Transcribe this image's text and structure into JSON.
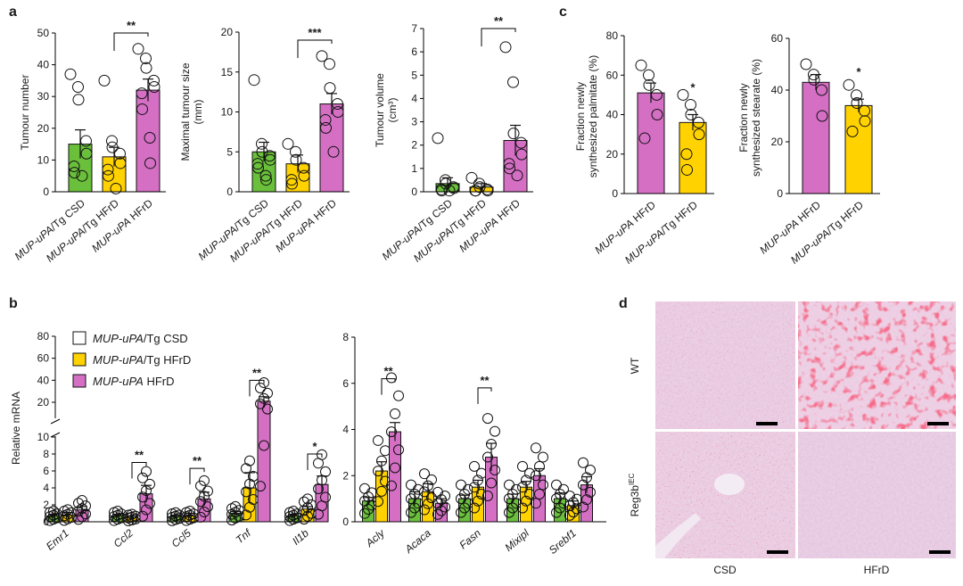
{
  "panel_labels": {
    "a": "a",
    "b": "b",
    "c": "c",
    "d": "d"
  },
  "colors": {
    "csd": "#6abf3b",
    "tg_hfrd": "#ffd200",
    "hfrd": "#d46fc4"
  },
  "chart_data": [
    {
      "type": "bar",
      "ylabel": "Tumour number",
      "ylim": [
        0,
        50
      ],
      "yticks": [
        0,
        10,
        20,
        30,
        40,
        50
      ],
      "categories": [
        {
          "italic": "MUP-uPA",
          "rest": "/Tg CSD"
        },
        {
          "italic": "MUP-uPA",
          "rest": "/Tg HFrD"
        },
        {
          "italic": "MUP-uPA",
          "rest": " HFrD"
        }
      ],
      "values": [
        15,
        11,
        32
      ],
      "errors": [
        4.5,
        3,
        3.5
      ],
      "points": [
        [
          37,
          33,
          29,
          16,
          12,
          8,
          6,
          5
        ],
        [
          35,
          16,
          14,
          12,
          9,
          7,
          5,
          1
        ],
        [
          45,
          42,
          39,
          35,
          33,
          31,
          26,
          17,
          9
        ]
      ],
      "significance": [
        {
          "from": 1,
          "to": 2,
          "label": "**",
          "y": 50
        }
      ]
    },
    {
      "type": "bar",
      "ylabel": "Maximal tumour size (mm)",
      "ylim": [
        0,
        20
      ],
      "yticks": [
        0,
        5,
        10,
        15,
        20
      ],
      "categories": [
        {
          "italic": "MUP-uPA",
          "rest": "/Tg CSD"
        },
        {
          "italic": "MUP-uPA",
          "rest": "/Tg HFrD"
        },
        {
          "italic": "MUP-uPA",
          "rest": " HFrD"
        }
      ],
      "values": [
        5,
        3.5,
        11
      ],
      "errors": [
        1.2,
        1.1,
        1.3
      ],
      "points": [
        [
          14,
          6,
          5,
          4.5,
          4,
          3.5,
          3,
          2,
          1.5
        ],
        [
          6,
          5,
          4,
          3,
          2,
          1.5,
          1
        ],
        [
          17,
          16,
          13,
          11,
          10,
          9,
          8,
          5
        ]
      ],
      "significance": [
        {
          "from": 1,
          "to": 2,
          "label": "***",
          "y": 19
        }
      ]
    },
    {
      "type": "bar",
      "ylabel": "Tumour volume (cm3)",
      "ylim": [
        0,
        7
      ],
      "yticks": [
        0,
        1,
        2,
        3,
        4,
        5,
        6,
        7
      ],
      "categories": [
        {
          "italic": "MUP-uPA",
          "rest": "/Tg CSD"
        },
        {
          "italic": "MUP-uPA",
          "rest": "/Tg HFrD"
        },
        {
          "italic": "MUP-uPA",
          "rest": " HFrD"
        }
      ],
      "values": [
        0.35,
        0.2,
        2.2
      ],
      "errors": [
        0.25,
        0.15,
        0.65
      ],
      "points": [
        [
          2.3,
          0.5,
          0.35,
          0.2,
          0.15,
          0.1,
          0.05,
          0.05
        ],
        [
          0.6,
          0.35,
          0.2,
          0.1,
          0.05,
          0.05,
          0.05
        ],
        [
          6.2,
          4.7,
          2.5,
          2.1,
          1.6,
          1.2,
          1.0,
          0.7
        ]
      ],
      "significance": [
        {
          "from": 1,
          "to": 2,
          "label": "**",
          "y": 7
        }
      ]
    },
    {
      "type": "bar",
      "ylabel": "Relative mRNA",
      "ylim": [
        0,
        80
      ],
      "yticks": [
        0,
        2,
        4,
        6,
        8,
        10,
        20,
        40,
        60,
        80
      ],
      "groups": [
        "Emr1",
        "Ccl2",
        "Ccl5",
        "Tnf",
        "Il1b"
      ],
      "series": [
        {
          "name": {
            "italic": "MUP-uPA",
            "rest": "/Tg CSD"
          },
          "values": [
            0.7,
            0.7,
            0.6,
            1.0,
            0.7
          ],
          "errors": [
            0.2,
            0.2,
            0.2,
            0.2,
            0.2
          ]
        },
        {
          "name": {
            "italic": "MUP-uPA",
            "rest": "/Tg HFrD"
          },
          "values": [
            0.8,
            0.5,
            0.7,
            4.0,
            1.5
          ],
          "errors": [
            0.3,
            0.2,
            0.3,
            1.8,
            0.3
          ]
        },
        {
          "name": {
            "italic": "MUP-uPA",
            "rest": " HFrD"
          },
          "values": [
            1.4,
            3.3,
            2.7,
            21,
            4.4
          ],
          "errors": [
            0.4,
            1.0,
            0.8,
            4.0,
            1.0
          ]
        }
      ],
      "significance": [
        {
          "group": 1,
          "label": "**",
          "y": 7.0
        },
        {
          "group": 2,
          "label": "**",
          "y": 6.3
        },
        {
          "group": 3,
          "label": "**",
          "y": 40
        },
        {
          "group": 4,
          "label": "*",
          "y": 8.0
        }
      ]
    },
    {
      "type": "bar",
      "ylim": [
        0,
        8
      ],
      "yticks": [
        0,
        2,
        4,
        6,
        8
      ],
      "groups": [
        "Acly",
        "Acaca",
        "Fasn",
        "Mixipl",
        "Srebf1"
      ],
      "series": [
        {
          "name": {
            "italic": "MUP-uPA",
            "rest": "/Tg CSD"
          },
          "values": [
            0.9,
            1.0,
            1.0,
            1.0,
            1.0
          ],
          "errors": [
            0.15,
            0.3,
            0.15,
            0.2,
            0.25
          ]
        },
        {
          "name": {
            "italic": "MUP-uPA",
            "rest": "/Tg HFrD"
          },
          "values": [
            2.2,
            1.3,
            1.5,
            1.5,
            0.7
          ],
          "errors": [
            0.4,
            0.35,
            0.3,
            0.25,
            0.2
          ]
        },
        {
          "name": {
            "italic": "MUP-uPA",
            "rest": " HFrD"
          },
          "values": [
            3.9,
            0.8,
            2.8,
            2.0,
            1.6
          ],
          "errors": [
            0.4,
            0.2,
            0.6,
            0.3,
            0.35
          ]
        }
      ],
      "significance": [
        {
          "group": 0,
          "label": "**",
          "y": 6.2
        },
        {
          "group": 2,
          "label": "**",
          "y": 5.8
        }
      ]
    },
    {
      "type": "bar",
      "ylabel": "Fraction newly synthesized palmitate (%)",
      "ylim": [
        0,
        80
      ],
      "yticks": [
        0,
        20,
        40,
        60,
        80
      ],
      "categories": [
        {
          "italic": "MUP-uPA",
          "rest": " HFrD"
        },
        {
          "italic": "MUP-uPA",
          "rest": "/Tg HFrD"
        }
      ],
      "values": [
        51,
        36
      ],
      "errors": [
        5,
        4
      ],
      "points": [
        [
          65,
          60,
          55,
          50,
          40,
          28
        ],
        [
          50,
          45,
          40,
          36,
          30,
          20,
          12
        ]
      ],
      "significance": [
        {
          "bar": 1,
          "label": "*"
        }
      ]
    },
    {
      "type": "bar",
      "ylabel": "Fraction newly synthesized stearate (%)",
      "ylim": [
        0,
        60
      ],
      "yticks": [
        0,
        20,
        40,
        60
      ],
      "categories": [
        {
          "italic": "MUP-uPA",
          "rest": " HFrD"
        },
        {
          "italic": "MUP-uPA",
          "rest": "/Tg HFrD"
        }
      ],
      "values": [
        43,
        34
      ],
      "errors": [
        3,
        2.5
      ],
      "points": [
        [
          50,
          46,
          44,
          40,
          30
        ],
        [
          42,
          38,
          35,
          32,
          28,
          24
        ]
      ],
      "significance": [
        {
          "bar": 1,
          "label": "*"
        }
      ]
    }
  ],
  "legend": [
    {
      "italic": "MUP-uPA",
      "rest": "/Tg CSD"
    },
    {
      "italic": "MUP-uPA",
      "rest": "/Tg HFrD"
    },
    {
      "italic": "MUP-uPA",
      "rest": " HFrD"
    }
  ],
  "histology": {
    "row_labels": {
      "wt": "WT",
      "reg3b": "Reg3b",
      "reg3b_sup": "IEC"
    },
    "col_labels": {
      "csd": "CSD",
      "hfrd": "HFrD"
    }
  }
}
